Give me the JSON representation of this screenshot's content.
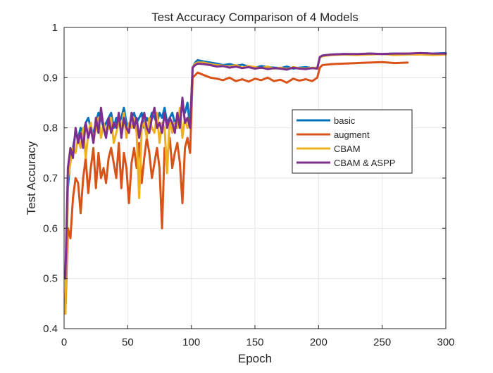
{
  "chart_data": {
    "type": "line",
    "title": "Test Accuracy Comparison of 4 Models",
    "xlabel": "Epoch",
    "ylabel": "Test Accuracy",
    "xlim": [
      0,
      300
    ],
    "ylim": [
      0.4,
      1.0
    ],
    "xticks": [
      "0",
      "50",
      "100",
      "150",
      "200",
      "250",
      "300"
    ],
    "yticks": [
      "0.4",
      "0.5",
      "0.6",
      "0.7",
      "0.8",
      "0.9",
      "1"
    ],
    "grid": true,
    "legend_position": "right",
    "series": [
      {
        "name": "basic",
        "color": "#0072BD",
        "x": [
          1,
          3,
          5,
          7,
          9,
          11,
          13,
          15,
          17,
          19,
          21,
          23,
          25,
          27,
          29,
          31,
          33,
          35,
          37,
          39,
          41,
          43,
          45,
          47,
          49,
          51,
          53,
          55,
          57,
          59,
          61,
          63,
          65,
          67,
          69,
          71,
          73,
          75,
          77,
          79,
          81,
          83,
          85,
          87,
          89,
          91,
          93,
          95,
          97,
          99,
          101,
          103,
          105,
          110,
          115,
          120,
          125,
          130,
          135,
          140,
          145,
          150,
          155,
          160,
          165,
          170,
          175,
          180,
          185,
          190,
          195,
          199,
          201,
          203,
          210,
          220,
          230,
          240,
          250,
          260,
          270,
          280,
          290,
          300
        ],
        "y": [
          0.43,
          0.68,
          0.74,
          0.76,
          0.79,
          0.78,
          0.8,
          0.79,
          0.81,
          0.82,
          0.8,
          0.79,
          0.81,
          0.83,
          0.82,
          0.8,
          0.81,
          0.82,
          0.83,
          0.8,
          0.82,
          0.81,
          0.82,
          0.84,
          0.81,
          0.8,
          0.82,
          0.83,
          0.81,
          0.82,
          0.83,
          0.8,
          0.82,
          0.81,
          0.83,
          0.82,
          0.81,
          0.83,
          0.82,
          0.84,
          0.81,
          0.82,
          0.83,
          0.81,
          0.8,
          0.82,
          0.84,
          0.83,
          0.85,
          0.8,
          0.92,
          0.93,
          0.935,
          0.932,
          0.93,
          0.928,
          0.925,
          0.927,
          0.924,
          0.926,
          0.922,
          0.92,
          0.923,
          0.921,
          0.92,
          0.919,
          0.922,
          0.918,
          0.92,
          0.921,
          0.919,
          0.92,
          0.94,
          0.944,
          0.946,
          0.947,
          0.946,
          0.948,
          0.947,
          0.948,
          0.947,
          0.949,
          0.948,
          0.949
        ]
      },
      {
        "name": "augment",
        "color": "#D95319",
        "x": [
          1,
          3,
          5,
          7,
          9,
          11,
          13,
          15,
          17,
          19,
          21,
          23,
          25,
          27,
          29,
          31,
          33,
          35,
          37,
          39,
          41,
          43,
          45,
          47,
          49,
          51,
          53,
          55,
          57,
          59,
          61,
          63,
          65,
          67,
          69,
          71,
          73,
          75,
          77,
          79,
          81,
          83,
          85,
          87,
          89,
          91,
          93,
          95,
          97,
          99,
          101,
          103,
          105,
          110,
          115,
          120,
          125,
          130,
          135,
          140,
          145,
          150,
          155,
          160,
          165,
          170,
          175,
          180,
          185,
          190,
          195,
          199,
          201,
          203,
          210,
          220,
          230,
          240,
          250,
          260,
          270
        ],
        "y": [
          0.43,
          0.6,
          0.58,
          0.66,
          0.7,
          0.69,
          0.63,
          0.7,
          0.74,
          0.67,
          0.72,
          0.76,
          0.68,
          0.75,
          0.7,
          0.72,
          0.69,
          0.74,
          0.76,
          0.73,
          0.7,
          0.77,
          0.68,
          0.75,
          0.72,
          0.65,
          0.73,
          0.76,
          0.72,
          0.77,
          0.69,
          0.74,
          0.78,
          0.75,
          0.7,
          0.73,
          0.76,
          0.72,
          0.6,
          0.76,
          0.74,
          0.78,
          0.72,
          0.75,
          0.77,
          0.73,
          0.65,
          0.76,
          0.78,
          0.75,
          0.9,
          0.905,
          0.91,
          0.905,
          0.9,
          0.898,
          0.895,
          0.9,
          0.893,
          0.897,
          0.892,
          0.898,
          0.895,
          0.9,
          0.893,
          0.896,
          0.89,
          0.898,
          0.894,
          0.897,
          0.893,
          0.9,
          0.92,
          0.925,
          0.927,
          0.928,
          0.929,
          0.93,
          0.931,
          0.929,
          0.93
        ]
      },
      {
        "name": "CBAM",
        "color": "#EDB120",
        "x": [
          1,
          3,
          5,
          7,
          9,
          11,
          13,
          15,
          17,
          19,
          21,
          23,
          25,
          27,
          29,
          31,
          33,
          35,
          37,
          39,
          41,
          43,
          45,
          47,
          49,
          51,
          53,
          55,
          57,
          59,
          61,
          63,
          65,
          67,
          69,
          71,
          73,
          75,
          77,
          79,
          81,
          83,
          85,
          87,
          89,
          91,
          93,
          95,
          97,
          99,
          101,
          103,
          105,
          110,
          115,
          120,
          125,
          130,
          135,
          140,
          145,
          150,
          155,
          160,
          165,
          170,
          175,
          180,
          185,
          190,
          195,
          199,
          201,
          203,
          210,
          220,
          230,
          240,
          250,
          260,
          270,
          280,
          290,
          300
        ],
        "y": [
          0.43,
          0.7,
          0.73,
          0.76,
          0.75,
          0.78,
          0.76,
          0.8,
          0.74,
          0.79,
          0.81,
          0.77,
          0.8,
          0.82,
          0.78,
          0.81,
          0.79,
          0.8,
          0.82,
          0.77,
          0.79,
          0.81,
          0.8,
          0.83,
          0.78,
          0.81,
          0.8,
          0.82,
          0.79,
          0.66,
          0.8,
          0.81,
          0.78,
          0.82,
          0.8,
          0.79,
          0.83,
          0.77,
          0.81,
          0.8,
          0.71,
          0.82,
          0.79,
          0.81,
          0.8,
          0.84,
          0.78,
          0.82,
          0.8,
          0.81,
          0.92,
          0.928,
          0.93,
          0.93,
          0.927,
          0.925,
          0.924,
          0.922,
          0.925,
          0.92,
          0.923,
          0.921,
          0.919,
          0.922,
          0.918,
          0.92,
          0.917,
          0.921,
          0.919,
          0.918,
          0.92,
          0.919,
          0.94,
          0.943,
          0.945,
          0.946,
          0.945,
          0.946,
          0.947,
          0.945,
          0.946,
          0.946,
          0.945,
          0.946
        ]
      },
      {
        "name": "CBAM & ASPP",
        "color": "#7E2F8E",
        "x": [
          1,
          3,
          5,
          7,
          9,
          11,
          13,
          15,
          17,
          19,
          21,
          23,
          25,
          27,
          29,
          31,
          33,
          35,
          37,
          39,
          41,
          43,
          45,
          47,
          49,
          51,
          53,
          55,
          57,
          59,
          61,
          63,
          65,
          67,
          69,
          71,
          73,
          75,
          77,
          79,
          81,
          83,
          85,
          87,
          89,
          91,
          93,
          95,
          97,
          99,
          101,
          103,
          105,
          110,
          115,
          120,
          125,
          130,
          135,
          140,
          145,
          150,
          155,
          160,
          165,
          170,
          175,
          180,
          185,
          190,
          195,
          199,
          201,
          203,
          210,
          220,
          230,
          240,
          250,
          260,
          270,
          280,
          290,
          300
        ],
        "y": [
          0.5,
          0.72,
          0.76,
          0.74,
          0.8,
          0.77,
          0.79,
          0.76,
          0.81,
          0.78,
          0.8,
          0.77,
          0.82,
          0.79,
          0.84,
          0.8,
          0.78,
          0.82,
          0.79,
          0.81,
          0.8,
          0.83,
          0.78,
          0.82,
          0.8,
          0.79,
          0.83,
          0.8,
          0.82,
          0.78,
          0.81,
          0.83,
          0.8,
          0.79,
          0.82,
          0.84,
          0.8,
          0.81,
          0.79,
          0.83,
          0.8,
          0.82,
          0.81,
          0.79,
          0.83,
          0.8,
          0.86,
          0.81,
          0.82,
          0.8,
          0.92,
          0.925,
          0.928,
          0.927,
          0.925,
          0.922,
          0.923,
          0.92,
          0.922,
          0.919,
          0.921,
          0.918,
          0.92,
          0.917,
          0.919,
          0.918,
          0.916,
          0.92,
          0.918,
          0.917,
          0.919,
          0.918,
          0.941,
          0.944,
          0.946,
          0.947,
          0.947,
          0.948,
          0.947,
          0.948,
          0.948,
          0.949,
          0.948,
          0.948
        ]
      }
    ]
  }
}
